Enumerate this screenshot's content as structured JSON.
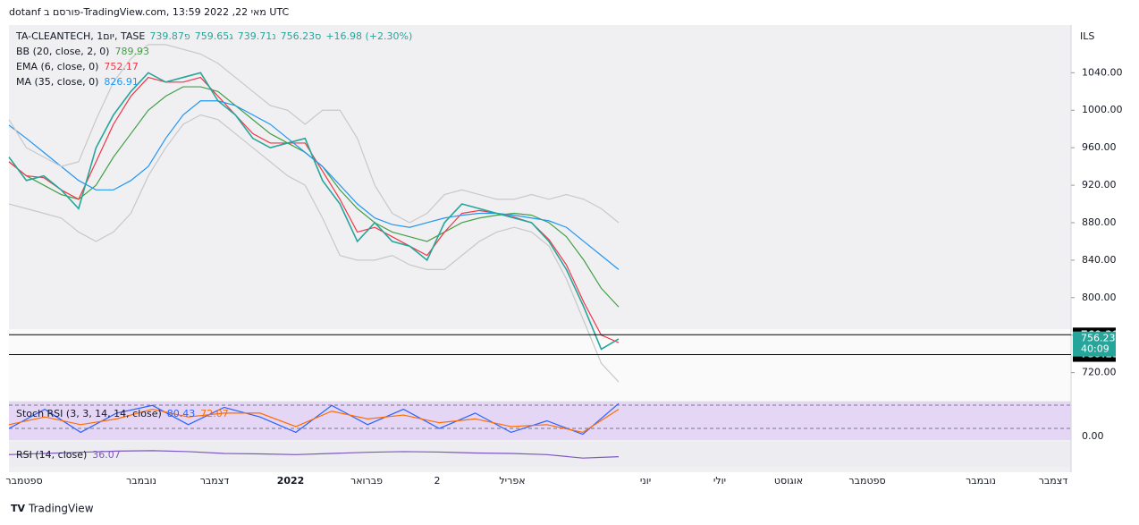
{
  "header": {
    "published": "dotanf פורסם ב-TradingView.com, מאי 22, 2022 13:59 UTC",
    "footer": "TradingView"
  },
  "chart_data": {
    "type": "line",
    "title": "TA-CLEANTECH, 1יום, TASE",
    "open": "פ739.87",
    "high": "ג759.65",
    "low": "נ739.71",
    "close": "ס756.23",
    "change": "+16.98 (+2.30%)",
    "currency": "ILS",
    "xlabels": [
      "ספטמבר",
      "נובמבר",
      "דצמבר",
      "2022",
      "פברואר",
      "2",
      "אפריל",
      "יוני",
      "יולי",
      "אוגוסט",
      "ספטמבר",
      "נובמבר",
      "דצמבר"
    ],
    "ylim": [
      691,
      1089
    ],
    "yticks": [
      {
        "value": 720,
        "label": "720.00"
      },
      {
        "value": 760,
        "label": "760.00"
      },
      {
        "value": 800,
        "label": "800.00"
      },
      {
        "value": 840,
        "label": "840.00"
      },
      {
        "value": 880,
        "label": "880.00"
      },
      {
        "value": 920,
        "label": "920.00"
      },
      {
        "value": 960,
        "label": "960.00"
      },
      {
        "value": 1000,
        "label": "1000.00"
      },
      {
        "value": 1040,
        "label": "1040.00"
      }
    ],
    "hlines": [
      {
        "value": 760.39,
        "label": "760.39"
      },
      {
        "value": 739.19,
        "label": "739.19"
      }
    ],
    "last_price": {
      "value": 756.23,
      "label": "756.23",
      "countdown": "40:09"
    },
    "series": [
      {
        "name": "BB (20, close, 2, 0)",
        "value_label": "789.93",
        "color": "#43a047",
        "values": [
          945,
          930,
          920,
          910,
          905,
          920,
          950,
          975,
          1000,
          1015,
          1025,
          1025,
          1020,
          1005,
          990,
          975,
          965,
          955,
          940,
          915,
          895,
          880,
          870,
          865,
          860,
          870,
          880,
          885,
          888,
          890,
          888,
          880,
          865,
          840,
          810,
          790
        ]
      },
      {
        "name": "EMA (6, close, 0)",
        "value_label": "752.17",
        "color": "#f23645",
        "values": [
          945,
          930,
          928,
          915,
          905,
          945,
          985,
          1015,
          1035,
          1030,
          1030,
          1035,
          1015,
          995,
          975,
          965,
          965,
          965,
          935,
          905,
          870,
          875,
          865,
          855,
          845,
          870,
          890,
          893,
          890,
          886,
          880,
          862,
          835,
          795,
          760,
          752
        ]
      },
      {
        "name": "MA (35, close, 0)",
        "value_label": "826.91",
        "color": "#2196f3",
        "values": [
          984,
          970,
          955,
          940,
          925,
          915,
          915,
          925,
          940,
          970,
          995,
          1010,
          1010,
          1005,
          995,
          985,
          970,
          955,
          940,
          920,
          900,
          885,
          878,
          875,
          880,
          885,
          888,
          890,
          890,
          888,
          885,
          882,
          875,
          860,
          845,
          830
        ]
      },
      {
        "name": "Close",
        "color": "#26a69a",
        "values": [
          950,
          925,
          930,
          915,
          895,
          960,
          995,
          1020,
          1040,
          1030,
          1035,
          1040,
          1010,
          995,
          970,
          960,
          965,
          970,
          925,
          900,
          860,
          880,
          860,
          855,
          840,
          880,
          900,
          895,
          890,
          885,
          880,
          860,
          830,
          790,
          745,
          756
        ]
      },
      {
        "name": "BB upper",
        "color": "#c8c8c8",
        "values": [
          990,
          960,
          950,
          940,
          945,
          990,
          1030,
          1055,
          1070,
          1070,
          1065,
          1060,
          1050,
          1035,
          1020,
          1005,
          1000,
          985,
          1000,
          1000,
          970,
          920,
          890,
          880,
          890,
          910,
          915,
          910,
          905,
          905,
          910,
          905,
          910,
          905,
          895,
          880
        ]
      },
      {
        "name": "BB lower",
        "color": "#c8c8c8",
        "values": [
          900,
          895,
          890,
          885,
          870,
          860,
          870,
          890,
          930,
          960,
          985,
          995,
          990,
          975,
          960,
          945,
          930,
          920,
          885,
          845,
          840,
          840,
          845,
          835,
          830,
          830,
          845,
          860,
          870,
          875,
          870,
          855,
          820,
          775,
          730,
          710
        ]
      }
    ],
    "stoch": {
      "name": "Stoch RSI (3, 3, 14, 14, close)",
      "ylim": [
        0,
        100
      ],
      "yticks": [
        {
          "value": 0,
          "label": "0.00"
        }
      ],
      "series": [
        {
          "name": "K",
          "value_label": "80.43",
          "color": "#2962ff",
          "values": [
            30,
            80,
            20,
            70,
            90,
            40,
            85,
            60,
            20,
            90,
            40,
            80,
            30,
            70,
            20,
            50,
            15,
            95
          ]
        },
        {
          "name": "D",
          "value_label": "72.07",
          "color": "#ff6d00",
          "values": [
            40,
            60,
            40,
            55,
            80,
            60,
            70,
            70,
            35,
            75,
            55,
            65,
            45,
            55,
            35,
            40,
            20,
            80
          ]
        }
      ]
    },
    "rsi": {
      "name": "RSI (14, close)",
      "value_label": "36.07",
      "color": "#7e57c2",
      "ylim": [
        0,
        100
      ],
      "values": [
        45,
        50,
        55,
        60,
        62,
        58,
        50,
        48,
        45,
        50,
        55,
        58,
        56,
        52,
        50,
        45,
        30,
        36
      ]
    }
  }
}
